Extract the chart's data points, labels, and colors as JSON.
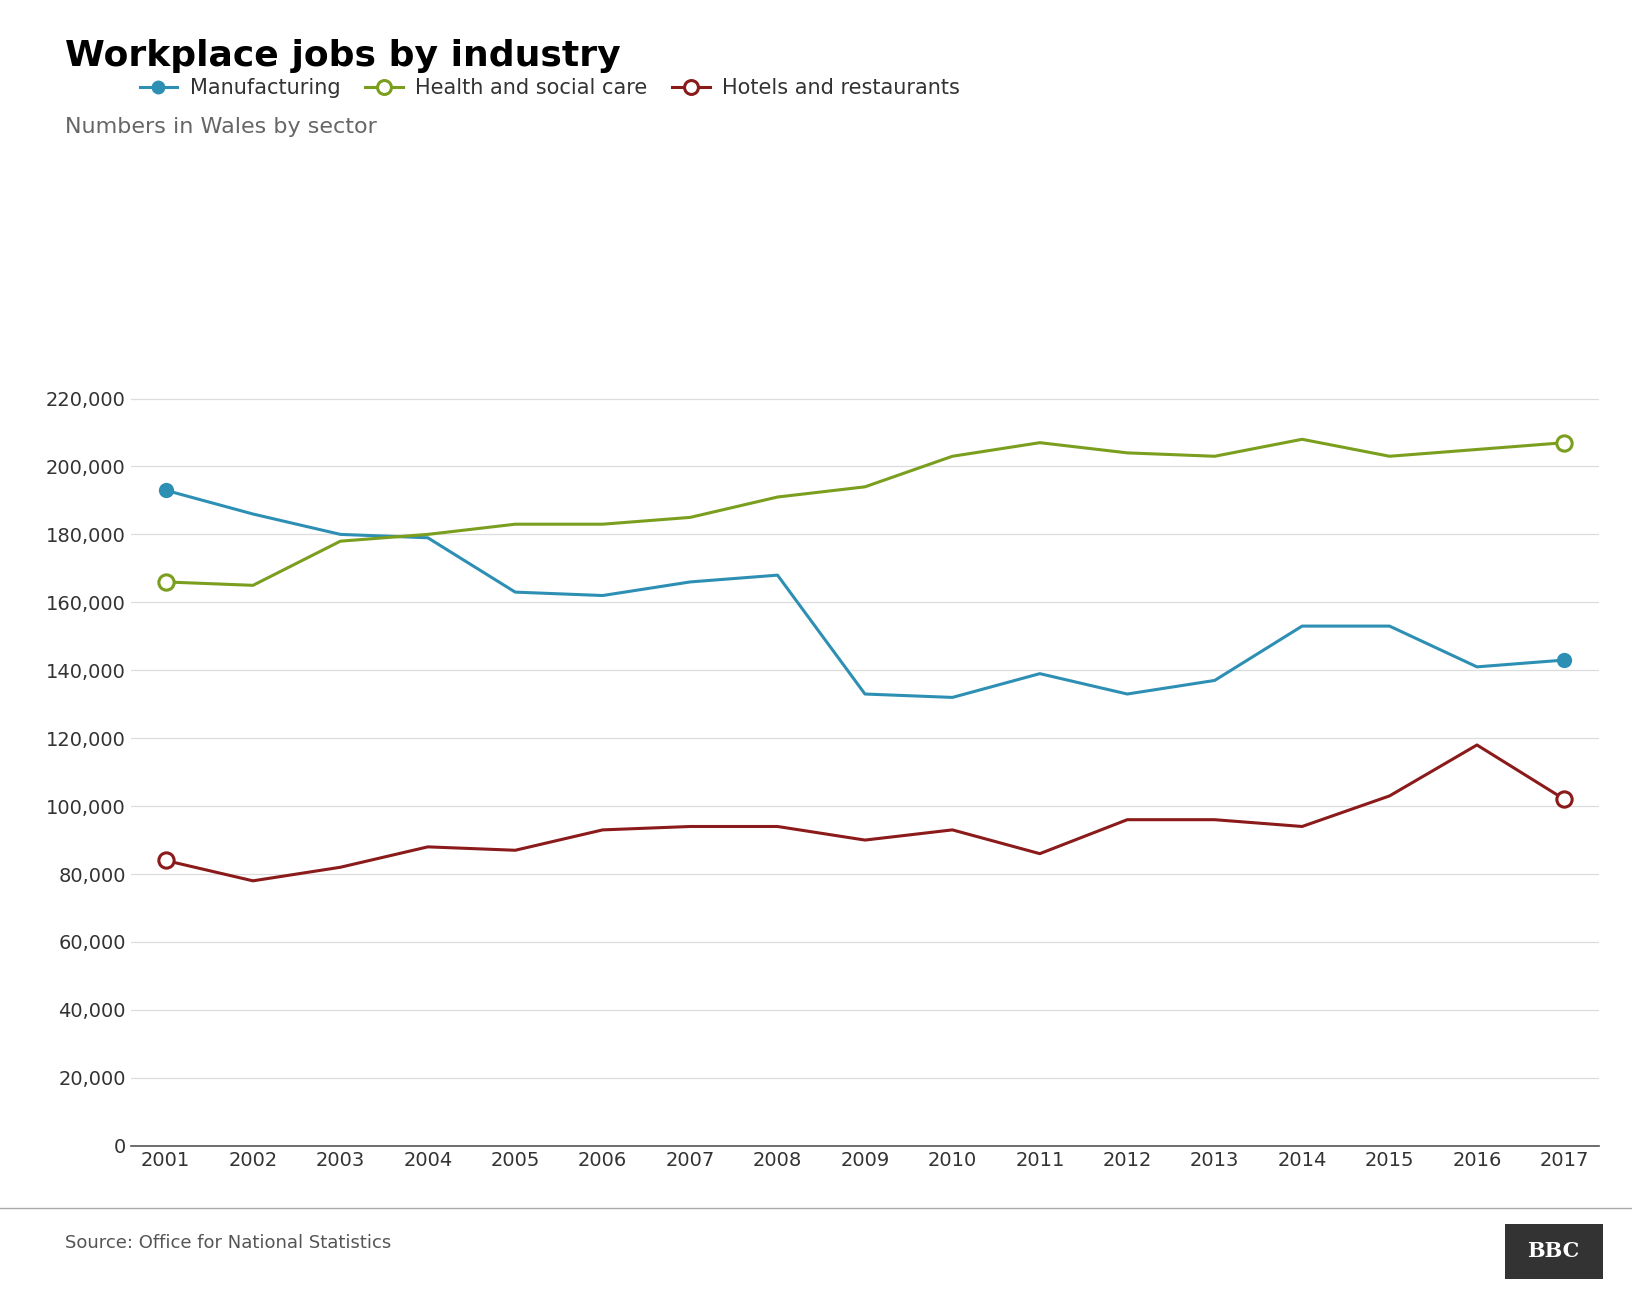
{
  "title": "Workplace jobs by industry",
  "subtitle": "Numbers in Wales by sector",
  "source": "Source: Office for National Statistics",
  "years": [
    2001,
    2002,
    2003,
    2004,
    2005,
    2006,
    2007,
    2008,
    2009,
    2010,
    2011,
    2012,
    2013,
    2014,
    2015,
    2016,
    2017
  ],
  "manufacturing": [
    193000,
    186000,
    180000,
    179000,
    163000,
    162000,
    166000,
    168000,
    133000,
    132000,
    139000,
    133000,
    137000,
    153000,
    153000,
    141000,
    143000
  ],
  "health_social": [
    166000,
    165000,
    178000,
    180000,
    183000,
    183000,
    185000,
    191000,
    194000,
    203000,
    207000,
    204000,
    203000,
    208000,
    203000,
    205000,
    207000
  ],
  "hotels_restaurants": [
    84000,
    78000,
    82000,
    88000,
    87000,
    93000,
    94000,
    94000,
    90000,
    93000,
    86000,
    96000,
    96000,
    94000,
    103000,
    118000,
    102000
  ],
  "manufacturing_color": "#2d8fb3",
  "health_social_color": "#7a9e1e",
  "hotels_restaurants_color": "#8b1a1a",
  "ylim": [
    0,
    230000
  ],
  "ytick_step": 20000,
  "background_color": "#ffffff",
  "legend_labels": [
    "Manufacturing",
    "Health and social care",
    "Hotels and restaurants"
  ],
  "bbc_logo": "BBC"
}
